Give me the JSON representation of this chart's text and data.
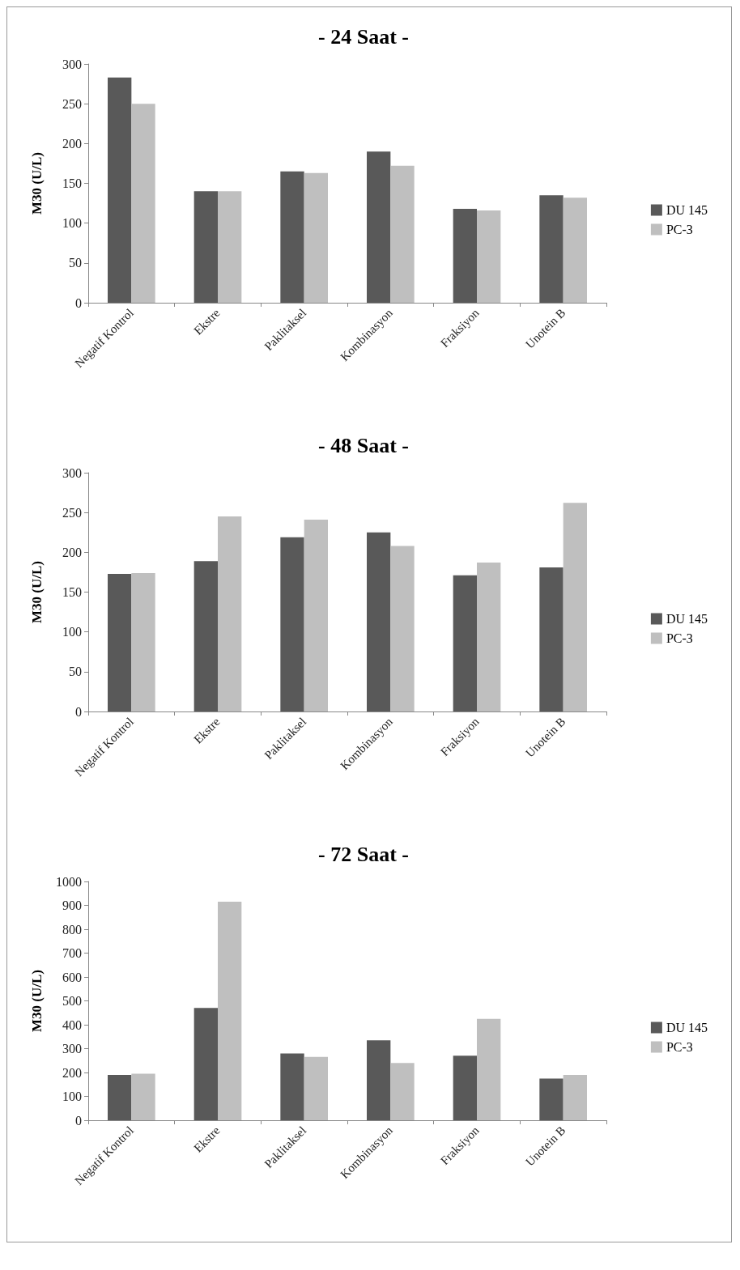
{
  "chart_data": [
    {
      "type": "bar",
      "title": "- 24 Saat -",
      "ylabel": "M30 (U/L)",
      "categories": [
        "Negatif Kontrol",
        "Ekstre",
        "Paklitaksel",
        "Kombinasyon",
        "Fraksiyon",
        "Unotein B"
      ],
      "series": [
        {
          "name": "DU 145",
          "color": "#595959",
          "values": [
            283,
            140,
            165,
            190,
            118,
            135
          ]
        },
        {
          "name": "PC-3",
          "color": "#bfbfbf",
          "values": [
            250,
            140,
            163,
            172,
            116,
            132
          ]
        }
      ],
      "ylim": [
        0,
        300
      ],
      "yticks": [
        0,
        50,
        100,
        150,
        200,
        250,
        300
      ],
      "grid": false,
      "legend": "right"
    },
    {
      "type": "bar",
      "title": "- 48 Saat -",
      "ylabel": "M30 (U/L)",
      "categories": [
        "Negatif Kontrol",
        "Ekstre",
        "Paklitaksel",
        "Kombinasyon",
        "Fraksiyon",
        "Unotein B"
      ],
      "series": [
        {
          "name": "DU 145",
          "color": "#595959",
          "values": [
            173,
            189,
            219,
            225,
            171,
            181
          ]
        },
        {
          "name": "PC-3",
          "color": "#bfbfbf",
          "values": [
            174,
            245,
            241,
            208,
            187,
            262
          ]
        }
      ],
      "ylim": [
        0,
        300
      ],
      "yticks": [
        0,
        50,
        100,
        150,
        200,
        250,
        300
      ],
      "grid": false,
      "legend": "right"
    },
    {
      "type": "bar",
      "title": "- 72 Saat -",
      "ylabel": "M30 (U/L)",
      "categories": [
        "Negatif Kontrol",
        "Ekstre",
        "Paklitaksel",
        "Kombinasyon",
        "Fraksiyon",
        "Unotein B"
      ],
      "series": [
        {
          "name": "DU 145",
          "color": "#595959",
          "values": [
            190,
            470,
            280,
            335,
            270,
            175
          ]
        },
        {
          "name": "PC-3",
          "color": "#bfbfbf",
          "values": [
            195,
            915,
            265,
            240,
            425,
            190
          ]
        }
      ],
      "ylim": [
        0,
        1000
      ],
      "yticks": [
        0,
        100,
        200,
        300,
        400,
        500,
        600,
        700,
        800,
        900,
        1000
      ],
      "grid": false,
      "legend": "right"
    }
  ]
}
